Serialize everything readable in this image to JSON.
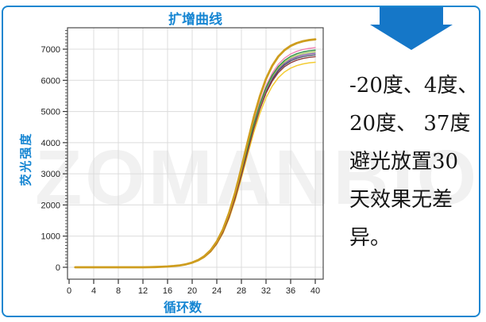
{
  "watermark": {
    "text": "ZOMANBIO",
    "color": "#f1f1f1"
  },
  "accent_color": "#1585d2",
  "chart_data": {
    "type": "line",
    "title": "扩增曲线",
    "xlabel": "循环数",
    "ylabel": "荧光强度",
    "xlim": [
      0,
      41
    ],
    "ylim": [
      -380,
      7690
    ],
    "x_ticks": [
      0,
      4,
      8,
      12,
      16,
      20,
      24,
      28,
      32,
      36,
      40
    ],
    "y_ticks": [
      0,
      1000,
      2000,
      3000,
      4000,
      5000,
      6000,
      7000
    ],
    "grid": true,
    "legend": false,
    "cycles": [
      1,
      2,
      3,
      4,
      5,
      6,
      7,
      8,
      9,
      10,
      11,
      12,
      13,
      14,
      15,
      16,
      17,
      18,
      19,
      20,
      21,
      22,
      23,
      24,
      25,
      26,
      27,
      28,
      29,
      30,
      31,
      32,
      33,
      34,
      35,
      36,
      37,
      38,
      39,
      40
    ],
    "amplification_profile": [
      0,
      0,
      0,
      0,
      0,
      0,
      0,
      0,
      0,
      0,
      0,
      0,
      0.0005,
      0.0011,
      0.0022,
      0.0034,
      0.0054,
      0.0084,
      0.0131,
      0.0204,
      0.0317,
      0.0488,
      0.0745,
      0.1121,
      0.1652,
      0.2368,
      0.3274,
      0.4329,
      0.5449,
      0.6525,
      0.7465,
      0.8221,
      0.8787,
      0.9191,
      0.9469,
      0.9655,
      0.9777,
      0.9857,
      0.9908,
      0.9941
    ],
    "series": [
      {
        "name": "curve-pink",
        "color": "#F083B5",
        "plateau": 7090,
        "width": 1.4
      },
      {
        "name": "curve-navy",
        "color": "#39455F",
        "plateau": 6860,
        "width": 1.3
      },
      {
        "name": "curve-purple",
        "color": "#7B4FA0",
        "plateau": 6910,
        "width": 1.3
      },
      {
        "name": "curve-light-green",
        "color": "#A9C85B",
        "plateau": 6960,
        "width": 1.3
      },
      {
        "name": "curve-yellow",
        "color": "#F3CC33",
        "plateau": 6620,
        "width": 1.5
      },
      {
        "name": "curve-green",
        "color": "#2F8F45",
        "plateau": 7010,
        "width": 1.4
      },
      {
        "name": "curve-maroon",
        "color": "#8E3B3B",
        "plateau": 6800,
        "width": 1.4
      },
      {
        "name": "curve-gold",
        "color": "#CE9D1E",
        "plateau": 7360,
        "width": 2.8
      }
    ]
  },
  "annotation": {
    "arrow_color": "#1577C8",
    "lines": [
      "-20度、4度、",
      "20度、 37度",
      "避光放置30",
      "天效果无差",
      "异。"
    ]
  }
}
